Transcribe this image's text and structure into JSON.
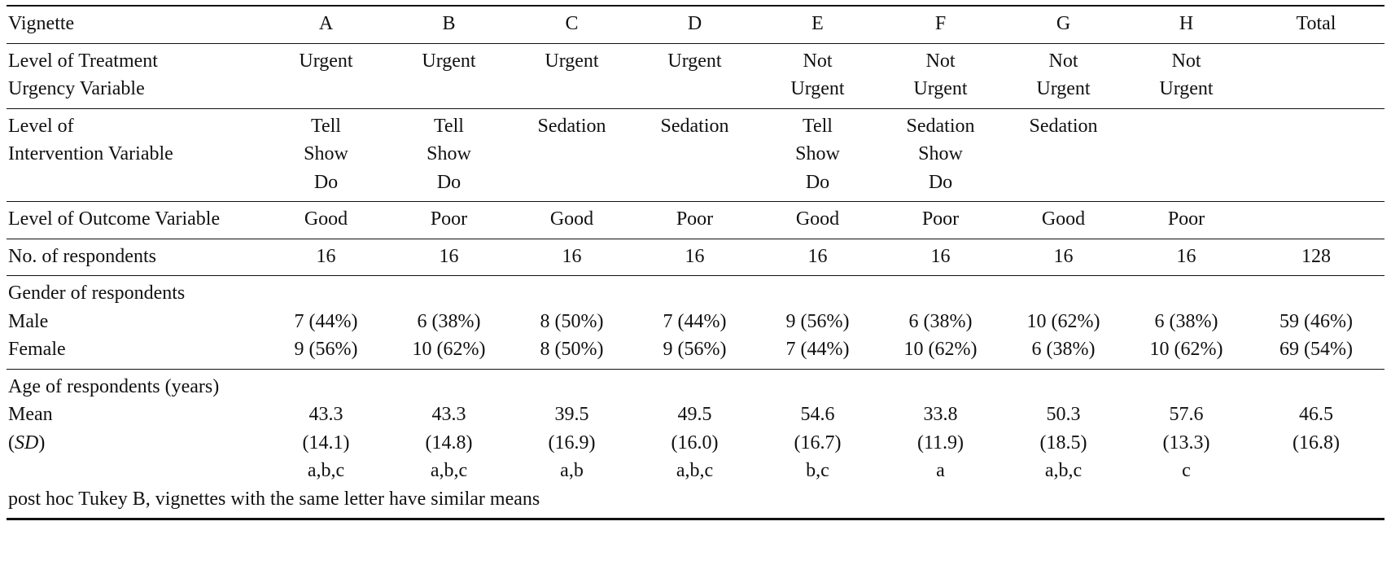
{
  "table": {
    "header": {
      "label": "Vignette",
      "columns": [
        "A",
        "B",
        "C",
        "D",
        "E",
        "F",
        "G",
        "H",
        "Total"
      ]
    },
    "urgency": {
      "label": [
        "Level of Treatment",
        "Urgency Variable"
      ],
      "cells": [
        [
          "Urgent"
        ],
        [
          "Urgent"
        ],
        [
          "Urgent"
        ],
        [
          "Urgent"
        ],
        [
          "Not",
          "Urgent"
        ],
        [
          "Not",
          "Urgent"
        ],
        [
          "Not",
          "Urgent"
        ],
        [
          "Not",
          "Urgent"
        ],
        []
      ]
    },
    "intervention": {
      "label": [
        "Level of",
        "Intervention Variable"
      ],
      "cells": [
        [
          "Tell",
          "Show",
          "Do"
        ],
        [
          "Tell",
          "Show",
          "Do"
        ],
        [
          "Sedation"
        ],
        [
          "Sedation"
        ],
        [
          "Tell",
          "Show",
          "Do"
        ],
        [
          "Sedation",
          "Show",
          "Do"
        ],
        [
          "Sedation"
        ],
        [],
        []
      ]
    },
    "outcome": {
      "label": "Level of Outcome Variable",
      "cells": [
        "Good",
        "Poor",
        "Good",
        "Poor",
        "Good",
        "Poor",
        "Good",
        "Poor",
        ""
      ]
    },
    "respondents": {
      "label": "No. of respondents",
      "cells": [
        "16",
        "16",
        "16",
        "16",
        "16",
        "16",
        "16",
        "16",
        "128"
      ]
    },
    "gender": {
      "label": "Gender of respondents",
      "male_label": "Male",
      "female_label": "Female",
      "male": [
        "7 (44%)",
        "6 (38%)",
        "8 (50%)",
        "7 (44%)",
        "9 (56%)",
        "6 (38%)",
        "10 (62%)",
        "6 (38%)",
        "59 (46%)"
      ],
      "female": [
        "9 (56%)",
        "10 (62%)",
        "8 (50%)",
        "9 (56%)",
        "7 (44%)",
        "10 (62%)",
        "6 (38%)",
        "10 (62%)",
        "69 (54%)"
      ]
    },
    "age": {
      "label": "Age of respondents (years)",
      "mean_label": "Mean",
      "sd_open": "(",
      "sd_label": "SD",
      "sd_close": ")",
      "mean": [
        "43.3",
        "43.3",
        "39.5",
        "49.5",
        "54.6",
        "33.8",
        "50.3",
        "57.6",
        "46.5"
      ],
      "sd": [
        "(14.1)",
        "(14.8)",
        "(16.9)",
        "(16.0)",
        "(16.7)",
        "(11.9)",
        "(18.5)",
        "(13.3)",
        "(16.8)"
      ],
      "tukey": [
        "a,b,c",
        "a,b,c",
        "a,b",
        "a,b,c",
        "b,c",
        "a",
        "a,b,c",
        "c",
        ""
      ]
    },
    "footnote": "post hoc Tukey B, vignettes with the same letter have similar means"
  }
}
